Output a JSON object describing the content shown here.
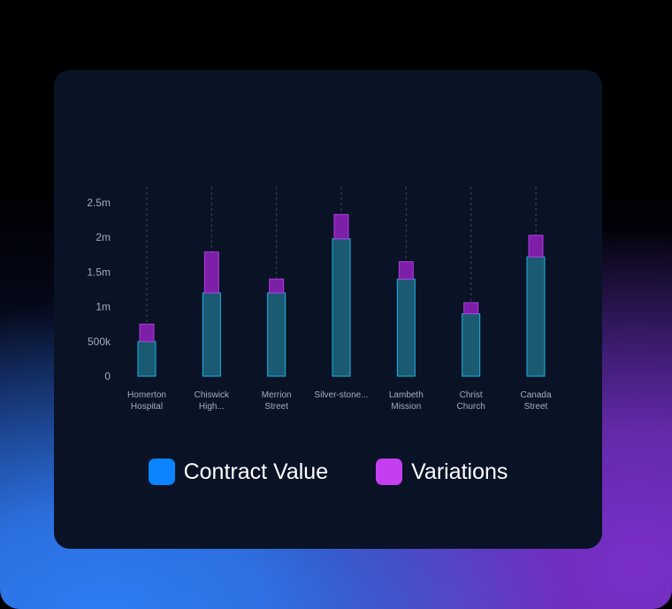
{
  "chart_data": {
    "type": "bar",
    "stacked": true,
    "categories": [
      [
        "Homerton",
        "Hospital"
      ],
      [
        "Chiswick",
        "High..."
      ],
      [
        "Merrion",
        "Street"
      ],
      [
        "Silver-stone..."
      ],
      [
        "Lambeth",
        "Mission"
      ],
      [
        "Christ",
        "Church"
      ],
      [
        "Canada",
        "Street"
      ]
    ],
    "series": [
      {
        "name": "Contract Value",
        "color": "#0a84ff",
        "values": [
          500000,
          1200000,
          1200000,
          1980000,
          1400000,
          900000,
          1720000
        ]
      },
      {
        "name": "Variations",
        "color": "#c53ef0",
        "values": [
          250000,
          590000,
          200000,
          350000,
          250000,
          160000,
          310000
        ]
      }
    ],
    "ylim": [
      0,
      2500000
    ],
    "yticks": [
      {
        "value": 0,
        "label": "0"
      },
      {
        "value": 500000,
        "label": "500k"
      },
      {
        "value": 1000000,
        "label": "1m"
      },
      {
        "value": 1500000,
        "label": "1.5m"
      },
      {
        "value": 2000000,
        "label": "2m"
      },
      {
        "value": 2500000,
        "label": "2.5m"
      }
    ],
    "legend": {
      "position": "bottom"
    },
    "colors": {
      "base_fill": "#1a5a72",
      "base_stroke": "#1bb3e0",
      "top_fill": "#7d1fa8",
      "top_stroke": "#b23bdf",
      "guide": "#3d4657"
    }
  }
}
